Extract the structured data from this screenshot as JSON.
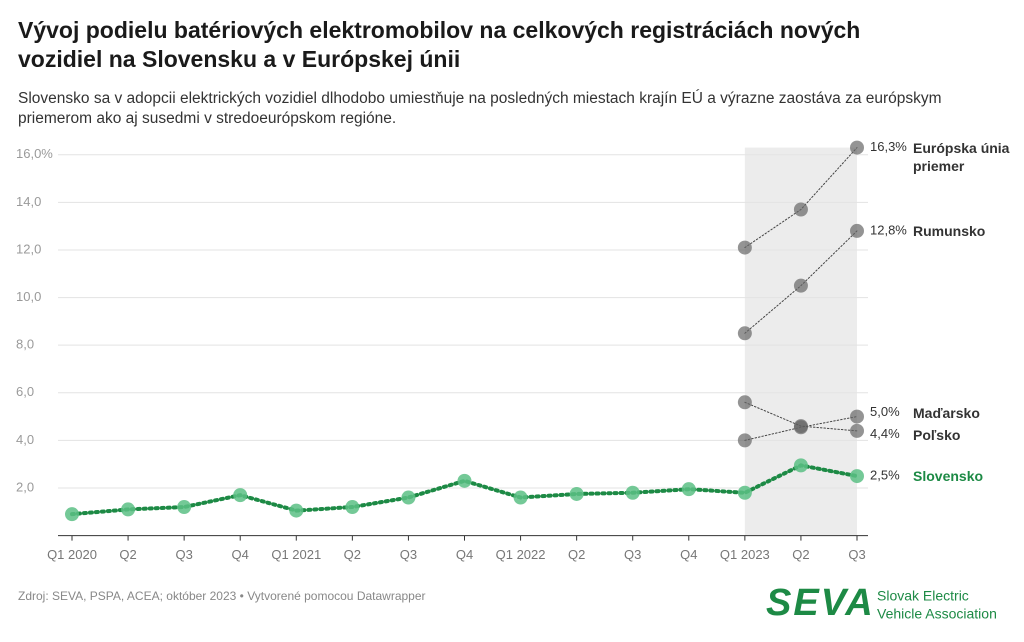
{
  "chart_data": {
    "type": "line",
    "title": "Vývoj podielu batériových elektromobilov na celkových registráciách nových vozidiel na Slovensku a v Európskej únii",
    "subtitle": "Slovensko sa v adopcii elektrických vozidiel dlhodobo umiestňuje na posledných miestach krajín EÚ a výrazne zaostáva za európskym priemerom ako aj susedmi v stredoeurópskom regióne.",
    "categories": [
      "Q1 2020",
      "Q2",
      "Q3",
      "Q4",
      "Q1 2021",
      "Q2",
      "Q3",
      "Q4",
      "Q1 2022",
      "Q2",
      "Q3",
      "Q4",
      "Q1 2023",
      "Q2",
      "Q3"
    ],
    "series": [
      {
        "name": "Európska únia priemer",
        "color": "#808080",
        "values": [
          null,
          null,
          null,
          null,
          null,
          null,
          null,
          null,
          null,
          null,
          null,
          null,
          12.1,
          13.7,
          16.3
        ],
        "value_labels": [
          null,
          null,
          null,
          null,
          null,
          null,
          null,
          null,
          null,
          null,
          null,
          null,
          null,
          null,
          "16,3%"
        ]
      },
      {
        "name": "Rumunsko",
        "color": "#808080",
        "values": [
          null,
          null,
          null,
          null,
          null,
          null,
          null,
          null,
          null,
          null,
          null,
          null,
          8.5,
          10.5,
          12.8
        ],
        "value_labels": [
          null,
          null,
          null,
          null,
          null,
          null,
          null,
          null,
          null,
          null,
          null,
          null,
          null,
          null,
          "12,8%"
        ]
      },
      {
        "name": "Maďarsko",
        "color": "#808080",
        "values": [
          null,
          null,
          null,
          null,
          null,
          null,
          null,
          null,
          null,
          null,
          null,
          null,
          4.0,
          4.55,
          5.0
        ],
        "value_labels": [
          null,
          null,
          null,
          null,
          null,
          null,
          null,
          null,
          null,
          null,
          null,
          null,
          null,
          null,
          "5,0%"
        ]
      },
      {
        "name": "Poľsko",
        "color": "#808080",
        "values": [
          null,
          null,
          null,
          null,
          null,
          null,
          null,
          null,
          null,
          null,
          null,
          null,
          5.6,
          4.6,
          4.4
        ],
        "value_labels": [
          null,
          null,
          null,
          null,
          null,
          null,
          null,
          null,
          null,
          null,
          null,
          null,
          null,
          null,
          "4,4%"
        ]
      },
      {
        "name": "Slovensko",
        "color": "#1d8a45",
        "values": [
          0.9,
          1.1,
          1.2,
          1.7,
          1.05,
          1.2,
          1.6,
          2.3,
          1.6,
          1.75,
          1.8,
          1.95,
          1.8,
          2.95,
          2.5
        ],
        "value_labels": [
          null,
          null,
          null,
          null,
          null,
          null,
          null,
          null,
          null,
          null,
          null,
          null,
          null,
          null,
          "2,5%"
        ]
      }
    ],
    "ylim": [
      0,
      16.3
    ],
    "yticks": [
      {
        "value": 2,
        "label": "2,0"
      },
      {
        "value": 4,
        "label": "4,0"
      },
      {
        "value": 6,
        "label": "6,0"
      },
      {
        "value": 8,
        "label": "8,0"
      },
      {
        "value": 10,
        "label": "10,0"
      },
      {
        "value": 12,
        "label": "12,0"
      },
      {
        "value": 14,
        "label": "14,0"
      },
      {
        "value": 16,
        "label": "16,0%"
      }
    ],
    "grid": true,
    "source": "Zdroj: SEVA, PSPA, ACEA; október 2023 • Vytvorené pomocou Datawrapper",
    "logo": {
      "mark": "SEVA",
      "text": [
        "Slovak Electric",
        "Vehicle Association"
      ]
    }
  }
}
